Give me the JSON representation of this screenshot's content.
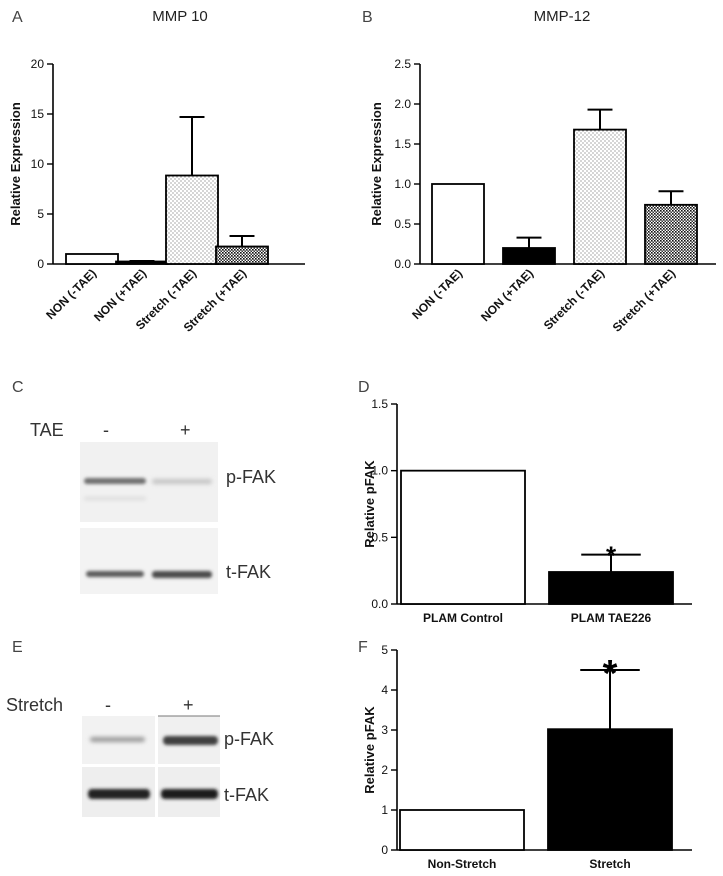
{
  "panels": {
    "A": "A",
    "B": "B",
    "C": "C",
    "D": "D",
    "E": "E",
    "F": "F"
  },
  "blot_C": {
    "condition_label": "TAE",
    "lane_minus": "-",
    "lane_plus": "+",
    "band_top": "p-FAK",
    "band_bottom": "t-FAK"
  },
  "blot_E": {
    "condition_label": "Stretch",
    "lane_minus": "-",
    "lane_plus": "+",
    "band_top": "p-FAK",
    "band_bottom": "t-FAK"
  },
  "chart_data": [
    {
      "panel": "A",
      "type": "bar",
      "title": "MMP 10",
      "ylabel": "Relative Expression",
      "xlabel": "",
      "ylim": [
        0,
        20
      ],
      "yticks": [
        0,
        5,
        10,
        15,
        20
      ],
      "categories": [
        "NON (-TAE)",
        "NON (+TAE)",
        "Stretch (-TAE)",
        "Stretch (+TAE)"
      ],
      "values": [
        1.0,
        0.25,
        8.85,
        1.75
      ],
      "errors": [
        0,
        0.05,
        5.85,
        1.05
      ],
      "fills": [
        "white",
        "black",
        "dots",
        "crosshatch"
      ]
    },
    {
      "panel": "B",
      "type": "bar",
      "title": "MMP-12",
      "ylabel": "Relative Expression",
      "xlabel": "",
      "ylim": [
        0,
        2.5
      ],
      "yticks": [
        "0.0",
        "0.5",
        "1.0",
        "1.5",
        "2.0",
        "2.5"
      ],
      "categories": [
        "NON (-TAE)",
        "NON (+TAE)",
        "Stretch (-TAE)",
        "Stretch (+TAE)"
      ],
      "values": [
        1.0,
        0.2,
        1.68,
        0.74
      ],
      "errors": [
        0,
        0.13,
        0.25,
        0.17
      ],
      "fills": [
        "white",
        "black",
        "dots",
        "crosshatch"
      ]
    },
    {
      "panel": "D",
      "type": "bar",
      "title": "",
      "ylabel": "Relative pFAK",
      "xlabel": "",
      "ylim": [
        0,
        1.5
      ],
      "yticks": [
        "0.0",
        "0.5",
        "1.0",
        "1.5"
      ],
      "categories": [
        "PLAM Control",
        "PLAM TAE226"
      ],
      "values": [
        1.0,
        0.24
      ],
      "errors": [
        0,
        0.13
      ],
      "fills": [
        "white",
        "black"
      ],
      "significance": [
        "",
        "*"
      ]
    },
    {
      "panel": "F",
      "type": "bar",
      "title": "",
      "ylabel": "Relative pFAK",
      "xlabel": "",
      "ylim": [
        0,
        5
      ],
      "yticks": [
        "0",
        "1",
        "2",
        "3",
        "4",
        "5"
      ],
      "categories": [
        "Non-Stretch",
        "Stretch"
      ],
      "values": [
        1.0,
        3.02
      ],
      "errors": [
        0,
        1.48
      ],
      "fills": [
        "white",
        "black"
      ],
      "significance": [
        "",
        "*"
      ]
    }
  ]
}
